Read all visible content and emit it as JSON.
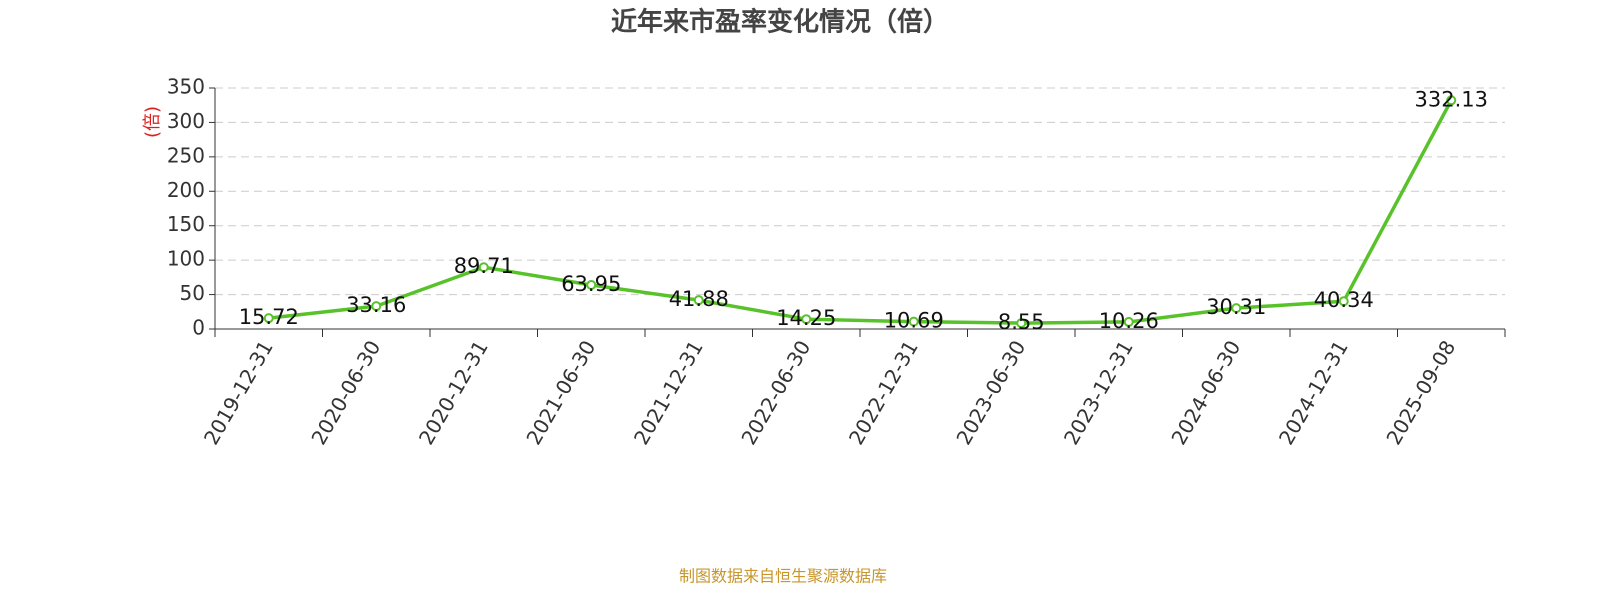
{
  "chart_data": {
    "type": "line",
    "title": "近年来市盈率变化情况（倍）",
    "y_label": "(倍)",
    "source": "制图数据来自恒生聚源数据库",
    "categories": [
      "2019-12-31",
      "2020-06-30",
      "2020-12-31",
      "2021-06-30",
      "2021-12-31",
      "2022-06-30",
      "2022-12-31",
      "2023-06-30",
      "2023-12-31",
      "2024-06-30",
      "2024-12-31",
      "2025-09-08"
    ],
    "values": [
      15.72,
      33.16,
      89.71,
      63.95,
      41.88,
      14.25,
      10.69,
      8.55,
      10.26,
      30.31,
      40.34,
      332.13
    ],
    "color": "#58c22a",
    "ylim": [
      0,
      350
    ],
    "yticks": [
      0,
      50,
      100,
      150,
      200,
      250,
      300,
      350
    ],
    "grid": true
  }
}
